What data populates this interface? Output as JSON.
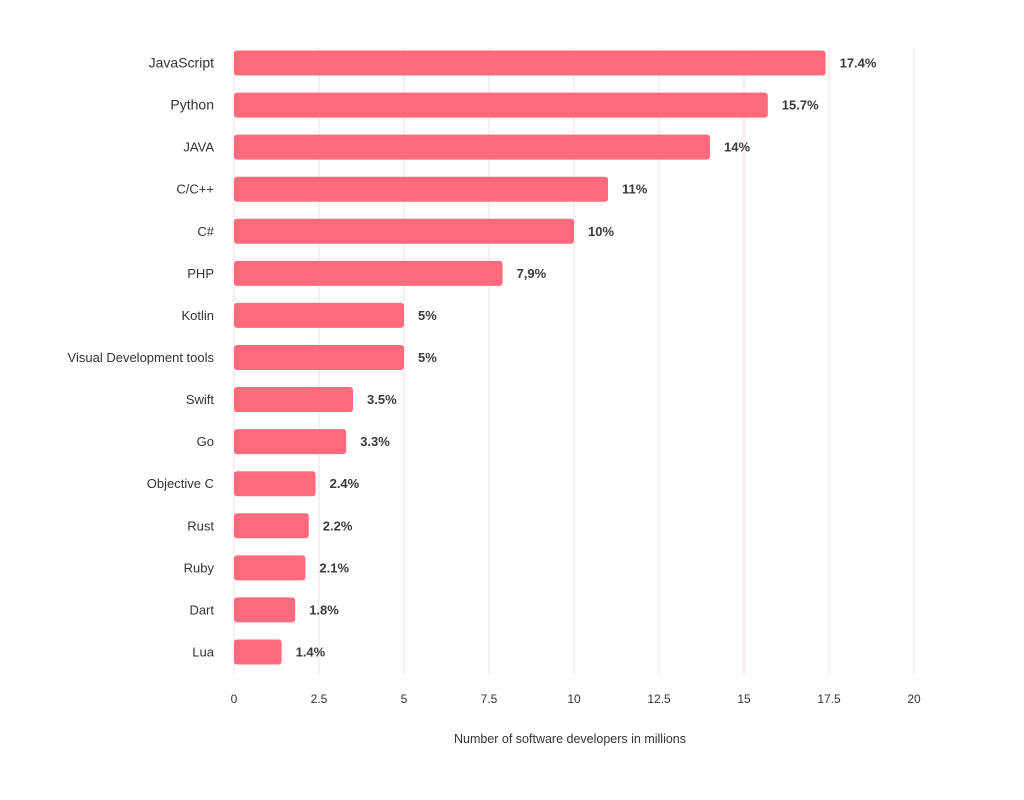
{
  "chart_data": {
    "type": "bar",
    "orientation": "horizontal",
    "categories": [
      "JavaScript",
      "Python",
      "JAVA",
      "C/C++",
      "C#",
      "PHP",
      "Kotlin",
      "Visual Development tools",
      "Swift",
      "Go",
      "Objective C",
      "Rust",
      "Ruby",
      "Dart",
      "Lua"
    ],
    "values": [
      17.4,
      15.7,
      14,
      11,
      10,
      7.9,
      5,
      5,
      3.5,
      3.3,
      2.4,
      2.2,
      2.1,
      1.8,
      1.4
    ],
    "value_labels": [
      "17.4%",
      "15.7%",
      "14%",
      "11%",
      "10%",
      "7,9%",
      "5%",
      "5%",
      "3.5%",
      "3.3%",
      "2.4%",
      "2.2%",
      "2.1%",
      "1.8%",
      "1.4%"
    ],
    "title": "",
    "xlabel": "Number of software developers in millions",
    "ylabel": "",
    "xlim": [
      0,
      20
    ],
    "xticks": [
      0,
      2.5,
      5,
      7.5,
      10,
      12.5,
      15,
      17.5,
      20
    ],
    "xtick_labels": [
      "0",
      "2.5",
      "5",
      "7.5",
      "10",
      "12.5",
      "15",
      "17.5",
      "20"
    ],
    "grid": true,
    "legend": false,
    "bar_color": "#ff6a7c"
  }
}
